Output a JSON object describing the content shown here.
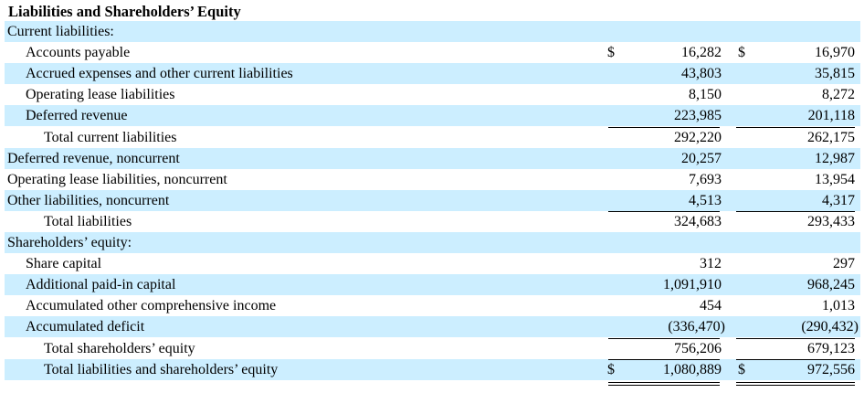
{
  "title": "Liabilities and Shareholders’ Equity",
  "currency_symbol": "$",
  "rows": [
    {
      "label": "Current liabilities:",
      "v1": "",
      "v2": ""
    },
    {
      "label": "Accounts payable",
      "v1": "16,282",
      "v2": "16,970"
    },
    {
      "label": "Accrued expenses and other current liabilities",
      "v1": "43,803",
      "v2": "35,815"
    },
    {
      "label": "Operating lease liabilities",
      "v1": "8,150",
      "v2": "8,272"
    },
    {
      "label": "Deferred revenue",
      "v1": "223,985",
      "v2": "201,118"
    },
    {
      "label": "Total current liabilities",
      "v1": "292,220",
      "v2": "262,175"
    },
    {
      "label": "Deferred revenue, noncurrent",
      "v1": "20,257",
      "v2": "12,987"
    },
    {
      "label": "Operating lease liabilities, noncurrent",
      "v1": "7,693",
      "v2": "13,954"
    },
    {
      "label": "Other liabilities, noncurrent",
      "v1": "4,513",
      "v2": "4,317"
    },
    {
      "label": "Total liabilities",
      "v1": "324,683",
      "v2": "293,433"
    },
    {
      "label": "Shareholders’ equity:",
      "v1": "",
      "v2": ""
    },
    {
      "label": "Share capital",
      "v1": "312",
      "v2": "297"
    },
    {
      "label": "Additional paid-in capital",
      "v1": "1,091,910",
      "v2": "968,245"
    },
    {
      "label": "Accumulated other comprehensive income",
      "v1": "454",
      "v2": "1,013"
    },
    {
      "label": "Accumulated deficit",
      "v1": "(336,470)",
      "v2": "(290,432)"
    },
    {
      "label": "Total shareholders’ equity",
      "v1": "756,206",
      "v2": "679,123"
    },
    {
      "label": "Total liabilities and shareholders’ equity",
      "v1": "1,080,889",
      "v2": "972,556"
    }
  ]
}
